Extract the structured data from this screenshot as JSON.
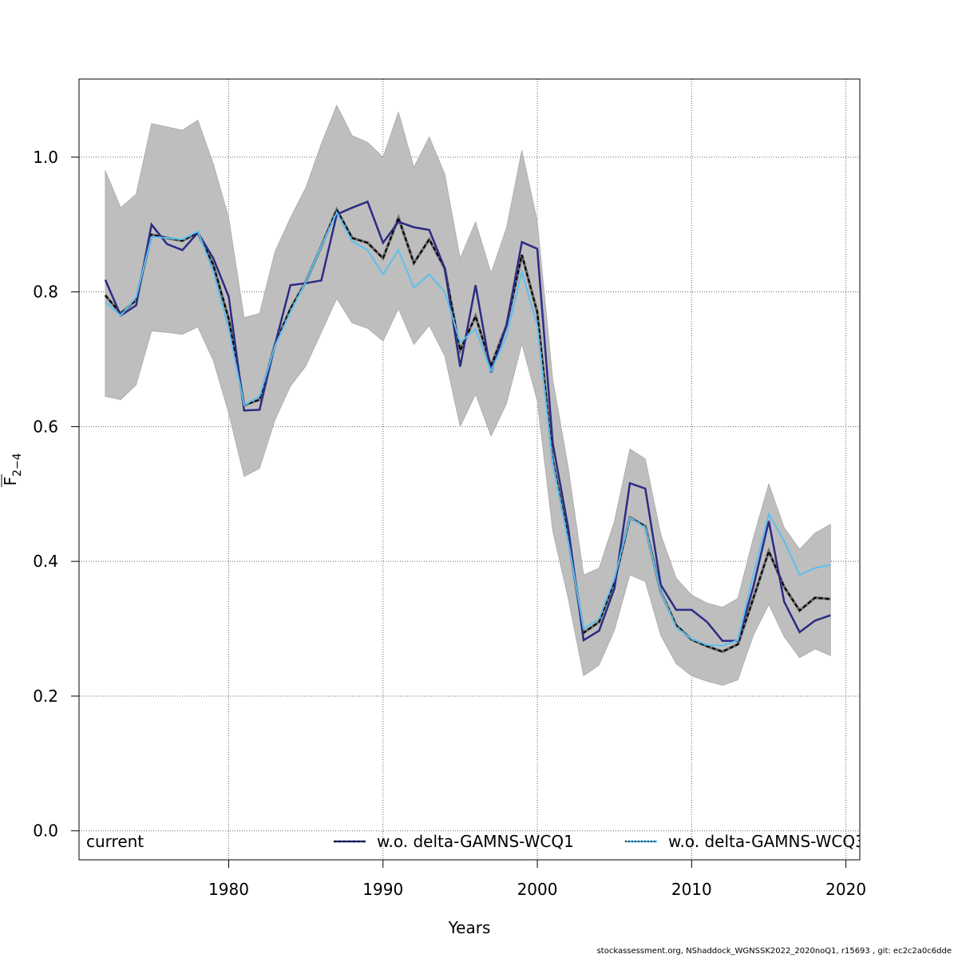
{
  "chart_data": {
    "type": "line",
    "title": "",
    "xlabel": "Years",
    "ylabel_main": "F",
    "ylabel_sub": "2−4",
    "xlim": [
      1970.3,
      2020.9
    ],
    "ylim": [
      -0.043,
      1.116
    ],
    "xticks": [
      1980,
      1990,
      2000,
      2010,
      2020
    ],
    "yticks": [
      0.0,
      0.2,
      0.4,
      0.6,
      0.8,
      1.0
    ],
    "ytick_labels": [
      "0.0",
      "0.2",
      "0.4",
      "0.6",
      "0.8",
      "1.0"
    ],
    "grid": true,
    "x": [
      1972,
      1973,
      1974,
      1975,
      1976,
      1977,
      1978,
      1979,
      1980,
      1981,
      1982,
      1983,
      1984,
      1985,
      1986,
      1987,
      1988,
      1989,
      1990,
      1991,
      1992,
      1993,
      1994,
      1995,
      1996,
      1997,
      1998,
      1999,
      2000,
      2001,
      2002,
      2003,
      2004,
      2005,
      2006,
      2007,
      2008,
      2009,
      2010,
      2011,
      2012,
      2013,
      2014,
      2015,
      2016,
      2017,
      2018,
      2019
    ],
    "band": {
      "name": "current confidence interval",
      "color": "#bebebe",
      "upper": [
        0.98,
        0.925,
        0.945,
        1.05,
        1.045,
        1.04,
        1.055,
        0.99,
        0.91,
        0.762,
        0.768,
        0.86,
        0.91,
        0.955,
        1.02,
        1.077,
        1.032,
        1.022,
        1.0,
        1.067,
        0.985,
        1.03,
        0.975,
        0.85,
        0.904,
        0.828,
        0.895,
        1.01,
        0.905,
        0.67,
        0.54,
        0.38,
        0.39,
        0.46,
        0.567,
        0.552,
        0.44,
        0.375,
        0.35,
        0.338,
        0.332,
        0.345,
        0.435,
        0.515,
        0.45,
        0.418,
        0.442,
        0.455
      ],
      "lower": [
        0.645,
        0.64,
        0.662,
        0.742,
        0.74,
        0.737,
        0.748,
        0.698,
        0.62,
        0.526,
        0.538,
        0.61,
        0.66,
        0.69,
        0.74,
        0.79,
        0.754,
        0.746,
        0.727,
        0.775,
        0.722,
        0.75,
        0.705,
        0.6,
        0.648,
        0.586,
        0.634,
        0.723,
        0.638,
        0.445,
        0.345,
        0.23,
        0.246,
        0.298,
        0.38,
        0.37,
        0.29,
        0.248,
        0.23,
        0.222,
        0.216,
        0.224,
        0.29,
        0.336,
        0.288,
        0.257,
        0.27,
        0.26
      ]
    },
    "series": [
      {
        "name": "current",
        "color": "#000000",
        "style": "dashed-over-grey",
        "values": [
          0.795,
          0.768,
          0.788,
          0.885,
          0.88,
          0.876,
          0.888,
          0.84,
          0.76,
          0.632,
          0.64,
          0.722,
          0.775,
          0.815,
          0.868,
          0.922,
          0.88,
          0.873,
          0.85,
          0.91,
          0.843,
          0.878,
          0.835,
          0.713,
          0.764,
          0.69,
          0.75,
          0.855,
          0.77,
          0.55,
          0.435,
          0.294,
          0.31,
          0.37,
          0.465,
          0.452,
          0.355,
          0.305,
          0.284,
          0.274,
          0.266,
          0.277,
          0.345,
          0.415,
          0.362,
          0.327,
          0.346,
          0.344
        ]
      },
      {
        "name": "w.o. delta-GAMNS-WCQ1",
        "color": "#2b2b85",
        "style": "solid",
        "values": [
          0.818,
          0.765,
          0.78,
          0.9,
          0.871,
          0.862,
          0.888,
          0.85,
          0.793,
          0.624,
          0.625,
          0.722,
          0.81,
          0.813,
          0.817,
          0.915,
          0.925,
          0.934,
          0.873,
          0.904,
          0.896,
          0.892,
          0.835,
          0.689,
          0.81,
          0.68,
          0.75,
          0.874,
          0.864,
          0.575,
          0.45,
          0.283,
          0.297,
          0.36,
          0.516,
          0.508,
          0.365,
          0.328,
          0.328,
          0.31,
          0.282,
          0.282,
          0.362,
          0.46,
          0.34,
          0.295,
          0.312,
          0.32
        ]
      },
      {
        "name": "w.o. delta-GAMNS-WCQ3",
        "color": "#5bc0f0",
        "style": "solid",
        "values": [
          0.785,
          0.765,
          0.792,
          0.882,
          0.88,
          0.878,
          0.89,
          0.83,
          0.745,
          0.632,
          0.645,
          0.72,
          0.77,
          0.815,
          0.868,
          0.918,
          0.875,
          0.862,
          0.826,
          0.862,
          0.806,
          0.826,
          0.8,
          0.725,
          0.745,
          0.682,
          0.735,
          0.83,
          0.75,
          0.545,
          0.43,
          0.3,
          0.315,
          0.375,
          0.465,
          0.45,
          0.355,
          0.302,
          0.285,
          0.276,
          0.275,
          0.283,
          0.38,
          0.47,
          0.43,
          0.38,
          0.39,
          0.395
        ]
      }
    ],
    "legend": {
      "placement": "bottom",
      "entries": [
        "current",
        "w.o. delta-GAMNS-WCQ1",
        "w.o. delta-GAMNS-WCQ3"
      ]
    }
  },
  "footer": "stockassessment.org, NShaddock_WGNSSK2022_2020noQ1, r15693 , git: ec2c2a0c6dde"
}
